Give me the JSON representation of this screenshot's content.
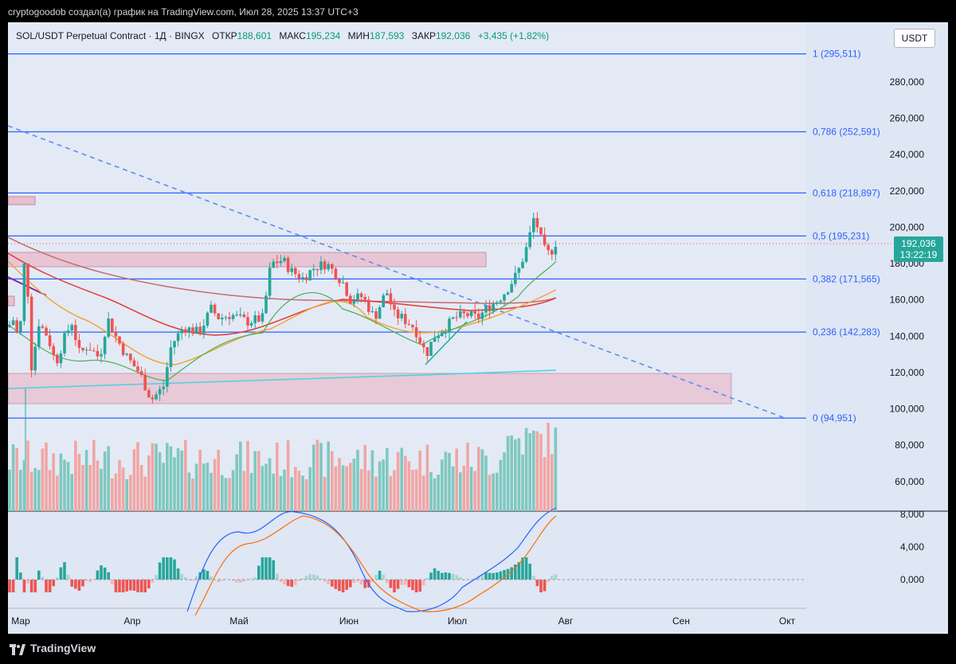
{
  "caption": "cryptogoodob создал(а) график на TradingView.com, Июл 28, 2025 13:37 UTC+3",
  "legend": {
    "symbol": "SOL/USDT Perpetual Contract · 1Д · BINGX",
    "open_label": "ОТКР",
    "open": "188,601",
    "high_label": "МАКС",
    "high": "195,234",
    "low_label": "МИН",
    "low": "187,593",
    "close_label": "ЗАКР",
    "close": "192,036",
    "change": "+3,435 (+1,82%)"
  },
  "currency": "USDT",
  "price_axis": {
    "ticks": [
      "280,000",
      "260,000",
      "240,000",
      "220,000",
      "200,000",
      "180,000",
      "160,000",
      "140,000",
      "120,000",
      "100,000",
      "80,000",
      "60,000"
    ],
    "last_price": "192,036",
    "countdown": "13:22:19"
  },
  "fib_levels": [
    {
      "label": "1 (295,511)",
      "price": 295.511
    },
    {
      "label": "0,786 (252,591)",
      "price": 252.591
    },
    {
      "label": "0,618 (218,897)",
      "price": 218.897
    },
    {
      "label": "0,5 (195,231)",
      "price": 195.231
    },
    {
      "label": "0,382 (171,565)",
      "price": 171.565
    },
    {
      "label": "0,236 (142,283)",
      "price": 142.283
    },
    {
      "label": "0 (94,951)",
      "price": 94.951
    }
  ],
  "macd_axis": {
    "ticks": [
      "8,000",
      "4,000",
      "0,000"
    ]
  },
  "time_axis": {
    "labels": [
      "Мар",
      "Апр",
      "Май",
      "Июн",
      "Июл",
      "Авг",
      "Сен",
      "Окт"
    ]
  },
  "branding": {
    "name": "TradingView"
  },
  "colors": {
    "up": "#26a69a",
    "down": "#ef5350",
    "fib": "#2962ff",
    "zone": "#e9bfcf",
    "ma_red": "#e53935",
    "ma_orange": "#f7a234",
    "ma_green": "#4caf50",
    "ma_cyan": "#4dd0e1"
  },
  "chart_data": {
    "type": "candlestick",
    "interval": "1Д",
    "y_range": [
      85,
      300
    ],
    "series_close_approx": [
      {
        "x": "Мар",
        "y": 145
      },
      {
        "x": "Апр",
        "y": 120
      },
      {
        "x": "Май",
        "y": 148
      },
      {
        "x": "Июн",
        "y": 158
      },
      {
        "x": "Июл",
        "y": 148
      },
      {
        "x": "Июл 22",
        "y": 205
      },
      {
        "x": "Июл 28",
        "y": 192.036
      }
    ]
  }
}
